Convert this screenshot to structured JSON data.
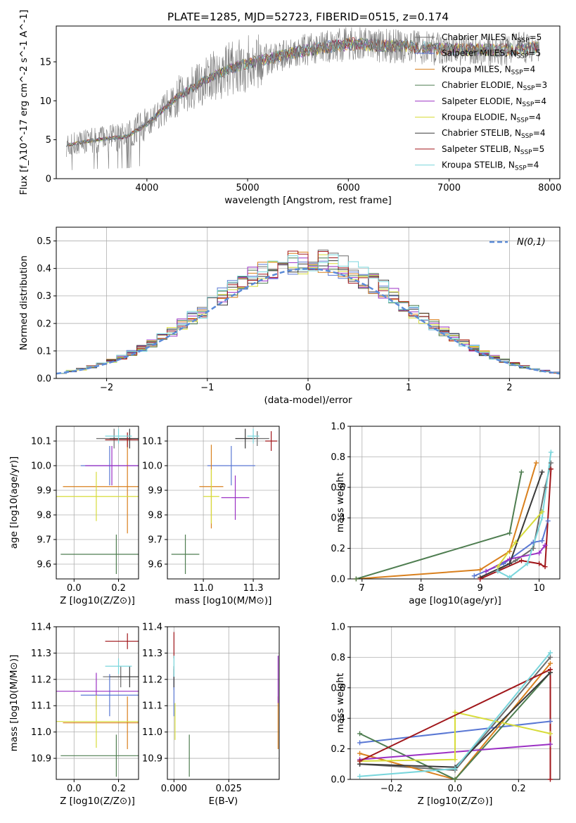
{
  "figure_title": "PLATE=1285, MJD=52723, FIBERID=0515, z=0.174",
  "models": [
    {
      "name": "Chabrier MILES",
      "nssp": "5",
      "color": "#6c6c6c"
    },
    {
      "name": "Salpeter MILES",
      "nssp": "5",
      "color": "#5a78d4"
    },
    {
      "name": "Kroupa MILES",
      "nssp": "4",
      "color": "#d9801e"
    },
    {
      "name": "Chabrier ELODIE",
      "nssp": "3",
      "color": "#4e7d50"
    },
    {
      "name": "Salpeter ELODIE",
      "nssp": "4",
      "color": "#9b30c4"
    },
    {
      "name": "Kroupa ELODIE",
      "nssp": "4",
      "color": "#d7dc3a"
    },
    {
      "name": "Chabrier STELIB",
      "nssp": "4",
      "color": "#3a3a3a"
    },
    {
      "name": "Salpeter STELIB",
      "nssp": "5",
      "color": "#a0161a"
    },
    {
      "name": "Kroupa STELIB",
      "nssp": "4",
      "color": "#79d6dc"
    }
  ],
  "chart_data": [
    {
      "id": "spectrum",
      "type": "line",
      "title": "PLATE=1285, MJD=52723, FIBERID=0515, z=0.174",
      "xlabel": "wavelength [Angstrom, rest frame]",
      "ylabel": "Flux [f_λ10^-17 erg cm^-2 s^-1 A^-1]",
      "xlim": [
        3100,
        8100
      ],
      "ylim": [
        0,
        19.6
      ],
      "xticks": [
        4000,
        5000,
        6000,
        7000,
        8000
      ],
      "yticks": [
        0,
        5,
        10,
        15
      ],
      "legend": "top-right",
      "grid": false,
      "continuum_x": [
        3200,
        3500,
        3800,
        4000,
        4300,
        4600,
        4800,
        5000,
        5500,
        6000,
        6500,
        7000,
        7500,
        7900
      ],
      "continuum_y": [
        4.3,
        5.0,
        5.4,
        7.0,
        10.5,
        12.8,
        14.0,
        14.8,
        16.3,
        17.3,
        17.0,
        16.6,
        16.5,
        16.8
      ]
    },
    {
      "id": "residuals",
      "type": "histogram",
      "xlabel": "(data-model)/error",
      "ylabel": "Normed distribution",
      "xlim": [
        -2.5,
        2.5
      ],
      "ylim": [
        0,
        0.55
      ],
      "xticks": [
        -2,
        -1,
        0,
        1,
        2
      ],
      "yticks": [
        0.0,
        0.1,
        0.2,
        0.3,
        0.4,
        0.5
      ],
      "grid": true,
      "legend": "top-right",
      "reference_label": "N(0,1)",
      "reference_color": "#5b8bd8",
      "bin_width": 0.1
    },
    {
      "id": "age_vs_z",
      "type": "errorbar",
      "xlabel": "Z [log10(Z/Z⊙)]",
      "ylabel": "age  [log10(age/yr)]",
      "xlim": [
        -0.08,
        0.29
      ],
      "ylim": [
        9.54,
        10.16
      ],
      "xticks": [
        0.0,
        0.2
      ],
      "yticks": [
        9.6,
        9.7,
        9.8,
        9.9,
        10.0,
        10.1
      ],
      "grid": true,
      "points": [
        {
          "x": 0.18,
          "y": 10.11,
          "xerr": 0.08,
          "yerr": 0.04
        },
        {
          "x": 0.16,
          "y": 10.0,
          "xerr": 0.13,
          "yerr": 0.08
        },
        {
          "x": 0.24,
          "y": 9.915,
          "xerr": 0.29,
          "yerr": 0.19
        },
        {
          "x": 0.19,
          "y": 9.64,
          "xerr": 0.25,
          "yerr": 0.08
        },
        {
          "x": 0.17,
          "y": 10.0,
          "xerr": 0.12,
          "yerr": 0.08
        },
        {
          "x": 0.1,
          "y": 9.875,
          "xerr": 0.2,
          "yerr": 0.1
        },
        {
          "x": 0.25,
          "y": 10.11,
          "xerr": 0.09,
          "yerr": 0.04
        },
        {
          "x": 0.24,
          "y": 10.105,
          "xerr": 0.1,
          "yerr": 0.03
        },
        {
          "x": 0.2,
          "y": 10.12,
          "xerr": 0.06,
          "yerr": 0.03
        }
      ]
    },
    {
      "id": "age_vs_mass",
      "type": "errorbar",
      "xlabel": "mass [log10(M/M⊙)]",
      "ylabel": "",
      "xlim": [
        10.82,
        11.38
      ],
      "ylim": [
        9.54,
        10.16
      ],
      "xticks": [
        11.0,
        11.25
      ],
      "yticks": [
        9.6,
        9.7,
        9.8,
        9.9,
        10.0,
        10.1
      ],
      "grid": true,
      "points": [
        {
          "x": 11.27,
          "y": 10.11,
          "xerr": 0.06,
          "yerr": 0.03
        },
        {
          "x": 11.14,
          "y": 10.0,
          "xerr": 0.12,
          "yerr": 0.08
        },
        {
          "x": 11.04,
          "y": 9.915,
          "xerr": 0.06,
          "yerr": 0.17
        },
        {
          "x": 10.91,
          "y": 9.64,
          "xerr": 0.07,
          "yerr": 0.08
        },
        {
          "x": 11.16,
          "y": 9.87,
          "xerr": 0.07,
          "yerr": 0.09
        },
        {
          "x": 11.04,
          "y": 9.875,
          "xerr": 0.04,
          "yerr": 0.11
        },
        {
          "x": 11.21,
          "y": 10.11,
          "xerr": 0.05,
          "yerr": 0.04
        },
        {
          "x": 11.34,
          "y": 10.1,
          "xerr": 0.03,
          "yerr": 0.04
        },
        {
          "x": 11.25,
          "y": 10.12,
          "xerr": 0.03,
          "yerr": 0.03
        }
      ]
    },
    {
      "id": "weight_vs_age",
      "type": "line",
      "xlabel": "age  [log10(age/yr)]",
      "ylabel": "mass weight",
      "xlim": [
        6.8,
        10.35
      ],
      "ylim": [
        0,
        1
      ],
      "xticks": [
        7,
        8,
        9,
        10
      ],
      "yticks": [
        0.0,
        0.2,
        0.4,
        0.6,
        0.8,
        1.0
      ],
      "grid": true,
      "series": [
        {
          "x": [
            9.3,
            9.6,
            9.9,
            10.1,
            10.2
          ],
          "y": [
            0.06,
            0.12,
            0.2,
            0.6,
            0.76
          ]
        },
        {
          "x": [
            8.9,
            9.4,
            9.9,
            10.05,
            10.15
          ],
          "y": [
            0.02,
            0.1,
            0.24,
            0.25,
            0.38
          ]
        },
        {
          "x": [
            6.9,
            9.0,
            9.5,
            9.95
          ],
          "y": [
            0.0,
            0.06,
            0.18,
            0.76
          ]
        },
        {
          "x": [
            6.9,
            9.5,
            9.7
          ],
          "y": [
            0.0,
            0.3,
            0.7
          ]
        },
        {
          "x": [
            9.1,
            9.5,
            10.0,
            10.1
          ],
          "y": [
            0.05,
            0.13,
            0.17,
            0.22
          ]
        },
        {
          "x": [
            9.3,
            9.6,
            10.05
          ],
          "y": [
            0.08,
            0.24,
            0.44
          ]
        },
        {
          "x": [
            9.0,
            9.5,
            10.05
          ],
          "y": [
            0.01,
            0.1,
            0.7
          ]
        },
        {
          "x": [
            9.0,
            9.7,
            10.0,
            10.1,
            10.2
          ],
          "y": [
            0.0,
            0.12,
            0.1,
            0.08,
            0.72
          ]
        },
        {
          "x": [
            9.3,
            9.5,
            9.8,
            10.05,
            10.2
          ],
          "y": [
            0.05,
            0.01,
            0.1,
            0.4,
            0.83
          ]
        }
      ]
    },
    {
      "id": "mass_vs_z",
      "type": "errorbar",
      "xlabel": "Z [log10(Z/Z⊙)]",
      "ylabel": "mass [log10(M/M⊙)]",
      "xlim": [
        -0.08,
        0.29
      ],
      "ylim": [
        10.82,
        11.4
      ],
      "xticks": [
        0.0,
        0.2
      ],
      "yticks": [
        10.9,
        11.0,
        11.1,
        11.2,
        11.3,
        11.4
      ],
      "grid": true,
      "points": [
        {
          "x": 0.21,
          "y": 11.21,
          "xerr": 0.08,
          "yerr": 0.04
        },
        {
          "x": 0.16,
          "y": 11.14,
          "xerr": 0.13,
          "yerr": 0.08
        },
        {
          "x": 0.24,
          "y": 11.035,
          "xerr": 0.29,
          "yerr": 0.1
        },
        {
          "x": 0.19,
          "y": 10.91,
          "xerr": 0.25,
          "yerr": 0.08
        },
        {
          "x": 0.1,
          "y": 11.155,
          "xerr": 0.2,
          "yerr": 0.07
        },
        {
          "x": 0.1,
          "y": 11.04,
          "xerr": 0.2,
          "yerr": 0.1
        },
        {
          "x": 0.25,
          "y": 11.21,
          "xerr": 0.09,
          "yerr": 0.04
        },
        {
          "x": 0.24,
          "y": 11.345,
          "xerr": 0.1,
          "yerr": 0.03
        },
        {
          "x": 0.2,
          "y": 11.25,
          "xerr": 0.06,
          "yerr": 0.03
        }
      ]
    },
    {
      "id": "mass_vs_ebv",
      "type": "errorbar",
      "xlabel": "E(B-V)",
      "ylabel": "",
      "xlim": [
        -0.003,
        0.048
      ],
      "ylim": [
        10.82,
        11.4
      ],
      "xticks": [
        0.0,
        0.025
      ],
      "yticks": [
        10.9,
        11.0,
        11.1,
        11.2,
        11.3,
        11.4
      ],
      "grid": true,
      "points": [
        {
          "x": 0.0,
          "y": 11.2,
          "xerr": 0.0,
          "yerr": 0.04
        },
        {
          "x": 0.0,
          "y": 11.14,
          "xerr": 0.0,
          "yerr": 0.08
        },
        {
          "x": 0.0475,
          "y": 11.035,
          "xerr": 0.0,
          "yerr": 0.1
        },
        {
          "x": 0.007,
          "y": 10.91,
          "xerr": 0.0,
          "yerr": 0.08
        },
        {
          "x": 0.0475,
          "y": 11.2,
          "xerr": 0.0,
          "yerr": 0.09
        },
        {
          "x": 0.0005,
          "y": 11.04,
          "xerr": 0.0,
          "yerr": 0.07
        },
        {
          "x": 0.0,
          "y": 11.21,
          "xerr": 0.0,
          "yerr": 0.04
        },
        {
          "x": 0.0,
          "y": 11.33,
          "xerr": 0.0,
          "yerr": 0.05
        },
        {
          "x": 0.0,
          "y": 11.25,
          "xerr": 0.0,
          "yerr": 0.04
        }
      ]
    },
    {
      "id": "weight_vs_z",
      "type": "line",
      "xlabel": "Z [log10(Z/Z⊙)]",
      "ylabel": "mass weight",
      "xlim": [
        -0.33,
        0.33
      ],
      "ylim": [
        0,
        1
      ],
      "xticks": [
        -0.2,
        0.0,
        0.2
      ],
      "yticks": [
        0.0,
        0.2,
        0.4,
        0.6,
        0.8,
        1.0
      ],
      "grid": true,
      "series": [
        {
          "x": [
            -0.3,
            0.0,
            0.3
          ],
          "y": [
            0.1,
            0.06,
            0.8
          ]
        },
        {
          "x": [
            -0.3,
            0.3
          ],
          "y": [
            0.24,
            0.38
          ]
        },
        {
          "x": [
            -0.3,
            0.0,
            0.3
          ],
          "y": [
            0.17,
            0.0,
            0.76
          ]
        },
        {
          "x": [
            -0.3,
            0.0,
            0.3
          ],
          "y": [
            0.3,
            0.0,
            0.7
          ]
        },
        {
          "x": [
            -0.3,
            0.3
          ],
          "y": [
            0.13,
            0.23
          ]
        },
        {
          "x": [
            -0.3,
            0.0,
            0.0,
            0.3
          ],
          "y": [
            0.12,
            0.13,
            0.44,
            0.3
          ]
        },
        {
          "x": [
            -0.3,
            0.0,
            0.3
          ],
          "y": [
            0.1,
            0.08,
            0.7
          ]
        },
        {
          "x": [
            -0.3,
            0.3,
            0.3
          ],
          "y": [
            0.12,
            0.72,
            0.0
          ]
        },
        {
          "x": [
            -0.3,
            0.0,
            0.3
          ],
          "y": [
            0.02,
            0.07,
            0.83
          ]
        }
      ]
    }
  ]
}
